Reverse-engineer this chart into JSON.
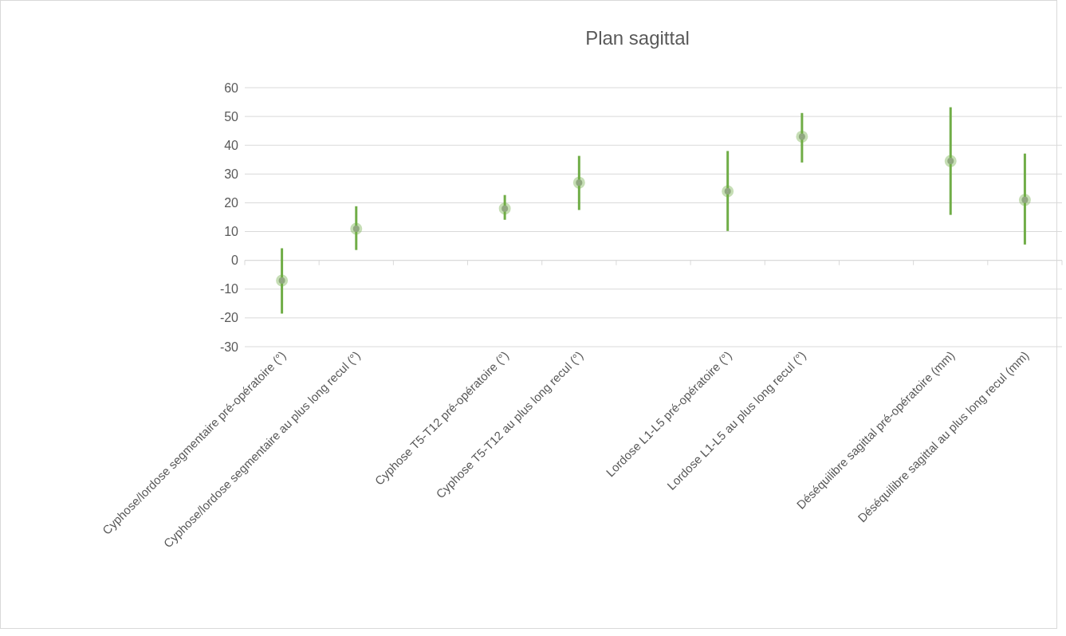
{
  "chart_data": {
    "type": "scatter",
    "title": "Plan sagittal",
    "categories": [
      "Cyphose/lordose segmentaire pré-opératoire (°)",
      "Cyphose/lordose segmentaire au plus long recul (°)",
      null,
      "Cyphose T5-T12 pré-opératoire (°)",
      "Cyphose T5-T12 au plus long recul (°)",
      null,
      "Lordose L1-L5 pré-opératoire (°)",
      "Lordose L1-L5 au plus long recul (°)",
      null,
      "Déséquilibre sagittal pré-opératoire (mm)",
      "Déséquilibre sagittal au plus long recul (mm)"
    ],
    "series": [
      {
        "color": "#70ad47",
        "values": [
          -7,
          11,
          null,
          18,
          27,
          null,
          24,
          43,
          null,
          34.5,
          21
        ],
        "errors": [
          [
            -18.5,
            4.2
          ],
          [
            3.6,
            18.8
          ],
          null,
          [
            14.1,
            22.7
          ],
          [
            17.5,
            36.3
          ],
          null,
          [
            10.2,
            38
          ],
          [
            34,
            51.2
          ],
          null,
          [
            15.8,
            53.2
          ],
          [
            5.5,
            37.1
          ]
        ]
      }
    ],
    "ylim": [
      -30,
      60
    ],
    "yticks": [
      -30,
      -20,
      -10,
      0,
      10,
      20,
      30,
      40,
      50,
      60
    ],
    "grid": "y",
    "marker": "circle"
  }
}
